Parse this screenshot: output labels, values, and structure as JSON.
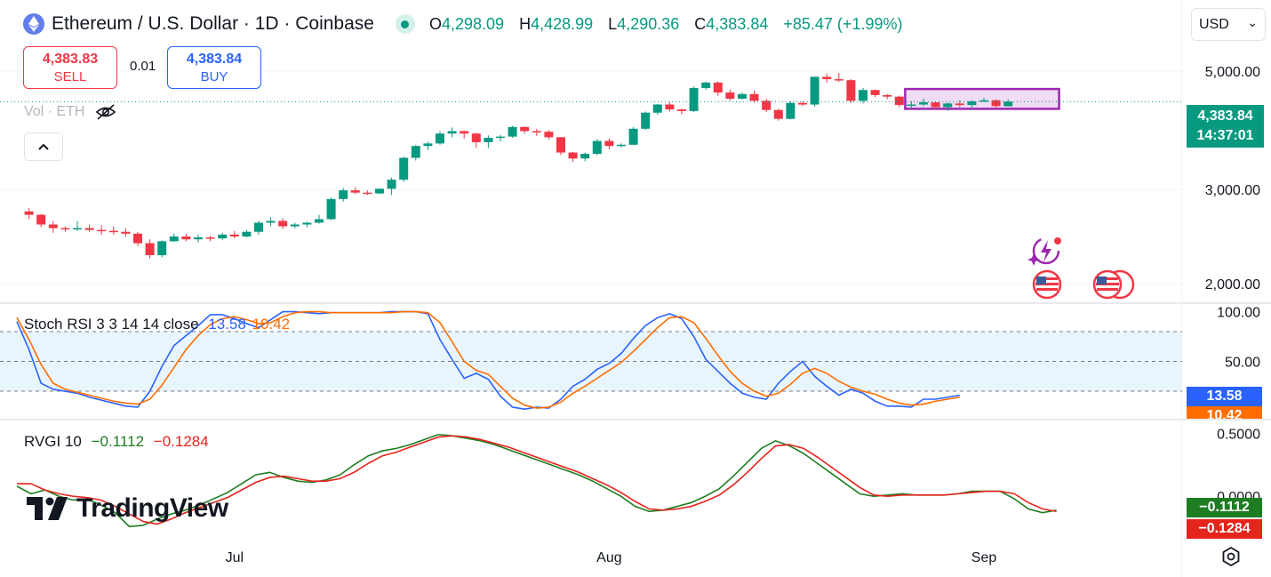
{
  "header": {
    "symbol_title": "Ethereum / U.S. Dollar · 1D · Coinbase",
    "open_label": "O",
    "open": "4,298.09",
    "high_label": "H",
    "high": "4,428.99",
    "low_label": "L",
    "low": "4,290.36",
    "close_label": "C",
    "close": "4,383.84",
    "change": "+85.47 (+1.99%)"
  },
  "trade": {
    "sell_price": "4,383.83",
    "sell_label": "SELL",
    "spread": "0.01",
    "buy_price": "4,383.84",
    "buy_label": "BUY"
  },
  "currency": {
    "value": "USD",
    "chevron_icon": "chevron-down-icon"
  },
  "volume": {
    "label": "Vol · ETH",
    "icon": "eye-crossed-icon"
  },
  "collapse_icon": "chevron-up-icon",
  "price_tag": {
    "price": "4,383.84",
    "countdown": "14:37:01"
  },
  "stoch": {
    "label": "Stoch RSI 3 3 14 14 close",
    "k": "13.58",
    "d": "10.42"
  },
  "rvgi": {
    "label": "RVGI 10",
    "v1": "−0.1112",
    "v2": "−0.1284"
  },
  "brand": "TradingView",
  "colors": {
    "up": "#089981",
    "down": "#f23645",
    "k_line": "#2962ff",
    "d_line": "#ff6d00",
    "rvgi_line": "#1e7d22",
    "rvgi_signal": "#e5241c",
    "box": "#9c27b0"
  },
  "chart_data": [
    {
      "type": "candlestick",
      "title": "Ethereum / U.S. Dollar · 1D · Coinbase",
      "yticks": [
        "5,000.00",
        "3,000.00",
        "2,000.00"
      ],
      "ytick_values": [
        5000,
        3000,
        2000
      ],
      "y_scale": "log",
      "ylim": [
        1880,
        5400
      ],
      "xticks": [
        "Jul",
        "Aug",
        "Sep"
      ],
      "xtick_index": [
        18,
        49,
        80
      ],
      "ohlc": [
        [
          2730,
          2770,
          2640,
          2690
        ],
        [
          2690,
          2700,
          2550,
          2580
        ],
        [
          2580,
          2620,
          2490,
          2540
        ],
        [
          2540,
          2560,
          2500,
          2530
        ],
        [
          2530,
          2620,
          2510,
          2540
        ],
        [
          2540,
          2580,
          2500,
          2520
        ],
        [
          2520,
          2570,
          2470,
          2510
        ],
        [
          2510,
          2560,
          2470,
          2500
        ],
        [
          2500,
          2540,
          2450,
          2480
        ],
        [
          2480,
          2500,
          2350,
          2380
        ],
        [
          2380,
          2420,
          2230,
          2260
        ],
        [
          2260,
          2410,
          2240,
          2400
        ],
        [
          2400,
          2480,
          2390,
          2450
        ],
        [
          2450,
          2480,
          2400,
          2420
        ],
        [
          2420,
          2470,
          2390,
          2440
        ],
        [
          2440,
          2460,
          2400,
          2430
        ],
        [
          2430,
          2490,
          2410,
          2470
        ],
        [
          2470,
          2510,
          2430,
          2450
        ],
        [
          2450,
          2520,
          2440,
          2500
        ],
        [
          2500,
          2620,
          2470,
          2600
        ],
        [
          2600,
          2660,
          2560,
          2620
        ],
        [
          2620,
          2650,
          2530,
          2560
        ],
        [
          2560,
          2600,
          2540,
          2580
        ],
        [
          2580,
          2610,
          2550,
          2600
        ],
        [
          2600,
          2690,
          2590,
          2640
        ],
        [
          2640,
          2900,
          2630,
          2880
        ],
        [
          2880,
          3020,
          2850,
          2990
        ],
        [
          2990,
          3030,
          2940,
          2960
        ],
        [
          2960,
          2990,
          2930,
          2950
        ],
        [
          2950,
          3020,
          2940,
          3010
        ],
        [
          3010,
          3160,
          2930,
          3130
        ],
        [
          3130,
          3460,
          3100,
          3440
        ],
        [
          3440,
          3640,
          3400,
          3620
        ],
        [
          3620,
          3690,
          3560,
          3660
        ],
        [
          3660,
          3860,
          3640,
          3820
        ],
        [
          3820,
          3920,
          3760,
          3860
        ],
        [
          3860,
          3870,
          3740,
          3820
        ],
        [
          3820,
          3830,
          3590,
          3680
        ],
        [
          3680,
          3790,
          3590,
          3750
        ],
        [
          3750,
          3800,
          3690,
          3770
        ],
        [
          3770,
          3950,
          3750,
          3930
        ],
        [
          3930,
          3940,
          3820,
          3860
        ],
        [
          3860,
          3900,
          3780,
          3850
        ],
        [
          3850,
          3880,
          3720,
          3760
        ],
        [
          3760,
          3760,
          3480,
          3520
        ],
        [
          3520,
          3530,
          3380,
          3430
        ],
        [
          3430,
          3520,
          3390,
          3500
        ],
        [
          3500,
          3730,
          3480,
          3700
        ],
        [
          3700,
          3740,
          3570,
          3620
        ],
        [
          3620,
          3660,
          3600,
          3640
        ],
        [
          3640,
          3930,
          3630,
          3900
        ],
        [
          3900,
          4200,
          3880,
          4180
        ],
        [
          4180,
          4340,
          4140,
          4330
        ],
        [
          4330,
          4380,
          4200,
          4240
        ],
        [
          4240,
          4250,
          4150,
          4210
        ],
        [
          4210,
          4680,
          4190,
          4650
        ],
        [
          4650,
          4780,
          4610,
          4760
        ],
        [
          4760,
          4790,
          4500,
          4560
        ],
        [
          4560,
          4620,
          4400,
          4440
        ],
        [
          4440,
          4560,
          4420,
          4530
        ],
        [
          4530,
          4600,
          4360,
          4400
        ],
        [
          4400,
          4440,
          4190,
          4230
        ],
        [
          4230,
          4250,
          4040,
          4070
        ],
        [
          4070,
          4390,
          4060,
          4360
        ],
        [
          4360,
          4390,
          4300,
          4330
        ],
        [
          4330,
          4890,
          4290,
          4880
        ],
        [
          4880,
          4950,
          4760,
          4830
        ],
        [
          4830,
          4960,
          4770,
          4810
        ],
        [
          4810,
          4830,
          4360,
          4400
        ],
        [
          4400,
          4650,
          4350,
          4610
        ],
        [
          4610,
          4620,
          4470,
          4510
        ],
        [
          4510,
          4530,
          4430,
          4480
        ],
        [
          4480,
          4500,
          4280,
          4320
        ],
        [
          4320,
          4390,
          4250,
          4330
        ],
        [
          4330,
          4440,
          4300,
          4370
        ],
        [
          4370,
          4380,
          4230,
          4280
        ],
        [
          4280,
          4370,
          4210,
          4350
        ],
        [
          4350,
          4410,
          4280,
          4320
        ],
        [
          4320,
          4410,
          4260,
          4390
        ],
        [
          4390,
          4460,
          4380,
          4410
        ],
        [
          4410,
          4430,
          4250,
          4300
        ],
        [
          4298.09,
          4428.99,
          4290.36,
          4383.84
        ]
      ]
    },
    {
      "type": "line",
      "title": "Stoch RSI 3 3 14 14 close",
      "yticks": [
        "100.00",
        "50.00"
      ],
      "ytick_values": [
        100,
        50
      ],
      "ylim": [
        -5,
        105
      ],
      "bands": [
        80,
        50,
        20
      ],
      "series": [
        {
          "name": "13.58",
          "values": [
            90,
            62,
            28,
            22,
            20,
            18,
            14,
            11,
            8,
            5,
            4,
            20,
            45,
            66,
            76,
            86,
            97,
            97,
            93,
            88,
            84,
            92,
            100,
            100,
            99,
            98,
            99,
            99,
            99,
            99,
            99,
            100,
            100,
            100,
            98,
            72,
            52,
            33,
            38,
            32,
            15,
            4,
            2,
            4,
            3,
            12,
            25,
            32,
            42,
            48,
            58,
            73,
            86,
            94,
            98,
            93,
            75,
            52,
            40,
            28,
            18,
            14,
            12,
            28,
            40,
            50,
            35,
            25,
            16,
            22,
            18,
            10,
            5,
            5,
            4,
            12,
            12,
            14,
            16
          ]
        },
        {
          "name": "10.42",
          "values": [
            94,
            72,
            47,
            28,
            22,
            19,
            16,
            13,
            10,
            8,
            7,
            12,
            26,
            44,
            62,
            76,
            87,
            93,
            95,
            92,
            88,
            89,
            95,
            99,
            100,
            100,
            99,
            99,
            99,
            99,
            99,
            99,
            100,
            100,
            99,
            89,
            70,
            50,
            41,
            37,
            25,
            13,
            6,
            3,
            4,
            9,
            18,
            25,
            33,
            41,
            49,
            60,
            72,
            84,
            94,
            95,
            89,
            73,
            56,
            40,
            28,
            20,
            15,
            18,
            27,
            38,
            43,
            38,
            30,
            24,
            20,
            17,
            12,
            8,
            6,
            7,
            10,
            12,
            14
          ]
        }
      ]
    },
    {
      "type": "line",
      "title": "RVGI 10",
      "yticks": [
        "0.5000",
        "0.0000"
      ],
      "ytick_values": [
        0.5,
        0.0
      ],
      "ylim": [
        -0.33,
        0.58
      ],
      "series": [
        {
          "name": "-0.1112",
          "values": [
            0.08,
            0.02,
            0.05,
            0.0,
            -0.03,
            -0.02,
            -0.07,
            -0.13,
            -0.24,
            -0.23,
            -0.18,
            -0.14,
            -0.11,
            -0.07,
            -0.02,
            0.03,
            0.1,
            0.17,
            0.19,
            0.15,
            0.12,
            0.11,
            0.13,
            0.17,
            0.25,
            0.32,
            0.36,
            0.38,
            0.41,
            0.45,
            0.49,
            0.48,
            0.46,
            0.44,
            0.41,
            0.37,
            0.33,
            0.29,
            0.25,
            0.21,
            0.17,
            0.12,
            0.06,
            0.0,
            -0.08,
            -0.12,
            -0.11,
            -0.08,
            -0.05,
            0.0,
            0.06,
            0.16,
            0.27,
            0.38,
            0.44,
            0.4,
            0.34,
            0.26,
            0.18,
            0.1,
            0.02,
            0.0,
            0.01,
            0.02,
            0.01,
            0.01,
            0.01,
            0.02,
            0.04,
            0.04,
            0.04,
            -0.02,
            -0.1,
            -0.13,
            -0.11
          ]
        },
        {
          "name": "-0.1284",
          "values": [
            0.1,
            0.1,
            0.05,
            0.02,
            0.0,
            -0.01,
            -0.03,
            -0.08,
            -0.14,
            -0.2,
            -0.22,
            -0.18,
            -0.13,
            -0.09,
            -0.05,
            -0.01,
            0.05,
            0.11,
            0.15,
            0.16,
            0.14,
            0.12,
            0.12,
            0.14,
            0.19,
            0.26,
            0.32,
            0.35,
            0.39,
            0.43,
            0.47,
            0.48,
            0.47,
            0.45,
            0.42,
            0.39,
            0.35,
            0.31,
            0.27,
            0.23,
            0.19,
            0.14,
            0.09,
            0.03,
            -0.04,
            -0.1,
            -0.11,
            -0.1,
            -0.08,
            -0.04,
            0.01,
            0.09,
            0.19,
            0.3,
            0.4,
            0.41,
            0.38,
            0.31,
            0.23,
            0.15,
            0.07,
            0.01,
            0.0,
            0.01,
            0.01,
            0.01,
            0.01,
            0.02,
            0.03,
            0.04,
            0.04,
            0.02,
            -0.05,
            -0.1,
            -0.12
          ]
        }
      ]
    }
  ]
}
